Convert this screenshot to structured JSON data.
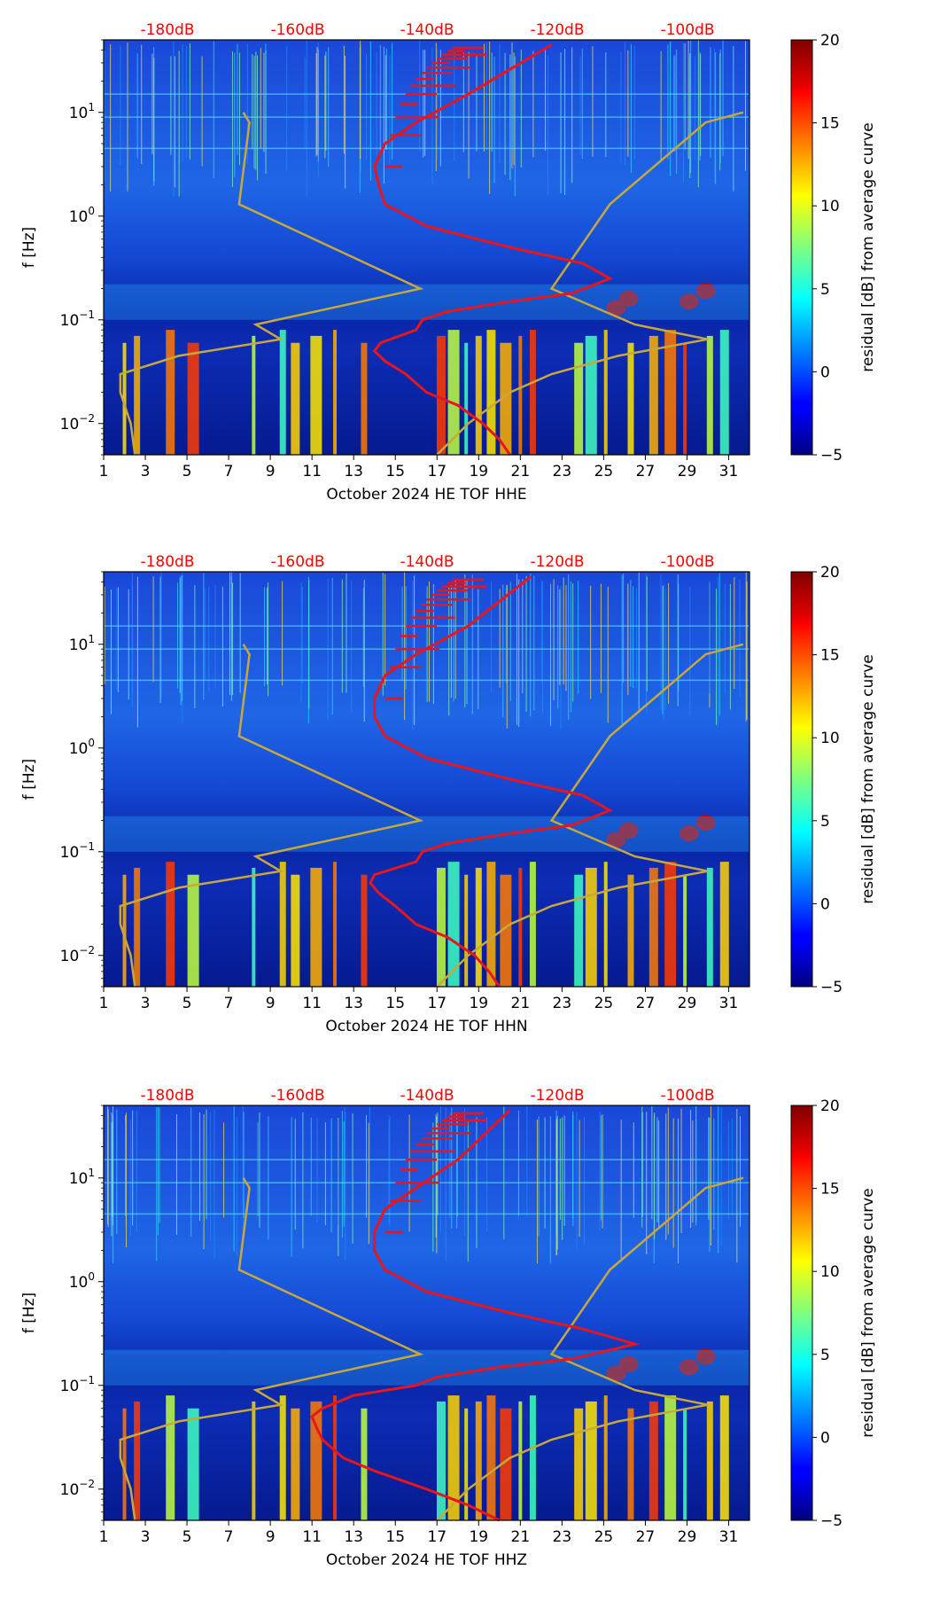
{
  "chart_data": [
    {
      "type": "heatmap",
      "station": "HHE",
      "xlabel": "October 2024 HE TOF  HHE",
      "ylabel": "f [Hz]",
      "x_ticks": [
        "1",
        "3",
        "5",
        "7",
        "9",
        "11",
        "13",
        "15",
        "17",
        "19",
        "21",
        "23",
        "25",
        "27",
        "29",
        "31"
      ],
      "xlim": [
        1,
        32
      ],
      "ylim": [
        0.005,
        50
      ],
      "y_ticks": [
        {
          "base": "10",
          "exp": "−2",
          "value": 0.01
        },
        {
          "base": "10",
          "exp": "−1",
          "value": 0.1
        },
        {
          "base": "10",
          "exp": "0",
          "value": 1
        },
        {
          "base": "10",
          "exp": "1",
          "value": 10
        }
      ],
      "db_ticks": [
        "-180dB",
        "-160dB",
        "-140dB",
        "-120dB",
        "-100dB"
      ],
      "colorbar": {
        "label": "residual [dB] from average curve",
        "ticks": [
          "20",
          "15",
          "10",
          "5",
          "0",
          "−5"
        ],
        "range": [
          -5,
          20
        ]
      },
      "model_curve_days": {
        "nlnm_day": [
          2.5,
          2.3,
          1.8,
          1.8,
          4.6,
          9.5,
          8.3,
          16.2,
          7.5,
          8.0,
          7.7
        ],
        "nhnm_day": [
          17.0,
          18.5,
          20.5,
          22.5,
          25.7,
          30.0,
          26.5,
          22.5,
          25.3,
          29.9,
          31.7
        ]
      },
      "psd_curve_days": [
        20.5,
        20.0,
        19.2,
        18.0,
        16.5,
        15.5,
        14.5,
        14.0,
        14.3,
        16.0,
        16.3,
        17.5,
        20.5,
        23.5,
        25.3,
        24.0,
        20.5,
        16.5,
        14.5,
        14.2,
        14.0,
        14.5,
        16.0,
        18.5,
        22.5
      ],
      "curve_freqs_hz": [
        0.005,
        0.007,
        0.01,
        0.015,
        0.02,
        0.03,
        0.04,
        0.05,
        0.06,
        0.08,
        0.1,
        0.12,
        0.15,
        0.18,
        0.25,
        0.35,
        0.5,
        0.8,
        1.3,
        2,
        3,
        5,
        8,
        15,
        45
      ]
    },
    {
      "type": "heatmap",
      "station": "HHN",
      "xlabel": "October 2024 HE TOF  HHN",
      "ylabel": "f [Hz]",
      "x_ticks": [
        "1",
        "3",
        "5",
        "7",
        "9",
        "11",
        "13",
        "15",
        "17",
        "19",
        "21",
        "23",
        "25",
        "27",
        "29",
        "31"
      ],
      "xlim": [
        1,
        32
      ],
      "ylim": [
        0.005,
        50
      ],
      "y_ticks": [
        {
          "base": "10",
          "exp": "−2",
          "value": 0.01
        },
        {
          "base": "10",
          "exp": "−1",
          "value": 0.1
        },
        {
          "base": "10",
          "exp": "0",
          "value": 1
        },
        {
          "base": "10",
          "exp": "1",
          "value": 10
        }
      ],
      "db_ticks": [
        "-180dB",
        "-160dB",
        "-140dB",
        "-120dB",
        "-100dB"
      ],
      "colorbar": {
        "label": "residual [dB] from average curve",
        "ticks": [
          "20",
          "15",
          "10",
          "5",
          "0",
          "−5"
        ],
        "range": [
          -5,
          20
        ]
      },
      "model_curve_days": {
        "nlnm_day": [
          2.5,
          2.3,
          1.8,
          1.8,
          4.6,
          9.5,
          8.3,
          16.2,
          7.5,
          8.0,
          7.7
        ],
        "nhnm_day": [
          17.0,
          18.5,
          20.5,
          22.5,
          25.7,
          30.0,
          26.5,
          22.5,
          25.3,
          29.9,
          31.7
        ]
      },
      "psd_curve_days": [
        20.0,
        19.5,
        18.8,
        17.5,
        16.0,
        15.0,
        14.2,
        13.8,
        14.0,
        16.0,
        16.3,
        17.5,
        20.5,
        23.5,
        25.3,
        24.0,
        20.5,
        16.5,
        14.5,
        14.0,
        14.0,
        14.5,
        16.0,
        18.5,
        21.5
      ],
      "curve_freqs_hz": [
        0.005,
        0.007,
        0.01,
        0.015,
        0.02,
        0.03,
        0.04,
        0.05,
        0.06,
        0.08,
        0.1,
        0.12,
        0.15,
        0.18,
        0.25,
        0.35,
        0.5,
        0.8,
        1.3,
        2,
        3,
        5,
        8,
        15,
        45
      ]
    },
    {
      "type": "heatmap",
      "station": "HHZ",
      "xlabel": "October 2024 HE TOF  HHZ",
      "ylabel": "f [Hz]",
      "x_ticks": [
        "1",
        "3",
        "5",
        "7",
        "9",
        "11",
        "13",
        "15",
        "17",
        "19",
        "21",
        "23",
        "25",
        "27",
        "29",
        "31"
      ],
      "xlim": [
        1,
        32
      ],
      "ylim": [
        0.005,
        50
      ],
      "y_ticks": [
        {
          "base": "10",
          "exp": "−2",
          "value": 0.01
        },
        {
          "base": "10",
          "exp": "−1",
          "value": 0.1
        },
        {
          "base": "10",
          "exp": "0",
          "value": 1
        },
        {
          "base": "10",
          "exp": "1",
          "value": 10
        }
      ],
      "db_ticks": [
        "-180dB",
        "-160dB",
        "-140dB",
        "-120dB",
        "-100dB"
      ],
      "colorbar": {
        "label": "residual [dB] from average curve",
        "ticks": [
          "20",
          "15",
          "10",
          "5",
          "0",
          "−5"
        ],
        "range": [
          -5,
          20
        ]
      },
      "model_curve_days": {
        "nlnm_day": [
          2.5,
          2.3,
          1.8,
          1.8,
          4.6,
          9.5,
          8.3,
          16.2,
          7.5,
          8.0,
          7.7
        ],
        "nhnm_day": [
          17.0,
          18.5,
          20.5,
          22.5,
          25.7,
          30.0,
          26.5,
          22.5,
          25.3,
          29.9,
          31.7
        ]
      },
      "psd_curve_days": [
        20.0,
        18.5,
        16.5,
        14.0,
        12.5,
        11.5,
        11.2,
        11.0,
        11.5,
        13.0,
        16.0,
        17.0,
        20.0,
        23.5,
        26.5,
        24.0,
        20.5,
        16.5,
        14.5,
        14.0,
        14.0,
        14.5,
        16.0,
        18.0,
        20.5
      ],
      "curve_freqs_hz": [
        0.005,
        0.007,
        0.01,
        0.015,
        0.02,
        0.03,
        0.04,
        0.05,
        0.06,
        0.08,
        0.1,
        0.12,
        0.15,
        0.18,
        0.25,
        0.35,
        0.5,
        0.8,
        1.3,
        2,
        3,
        5,
        8,
        15,
        45
      ]
    }
  ],
  "model_freqs_hz": [
    0.005,
    0.01,
    0.02,
    0.03,
    0.045,
    0.065,
    0.09,
    0.2,
    1.3,
    8,
    10
  ],
  "colors": {
    "psd_curve": "#e8151c",
    "model_curve": "#c8a83a",
    "db_text": "#ff0000"
  }
}
